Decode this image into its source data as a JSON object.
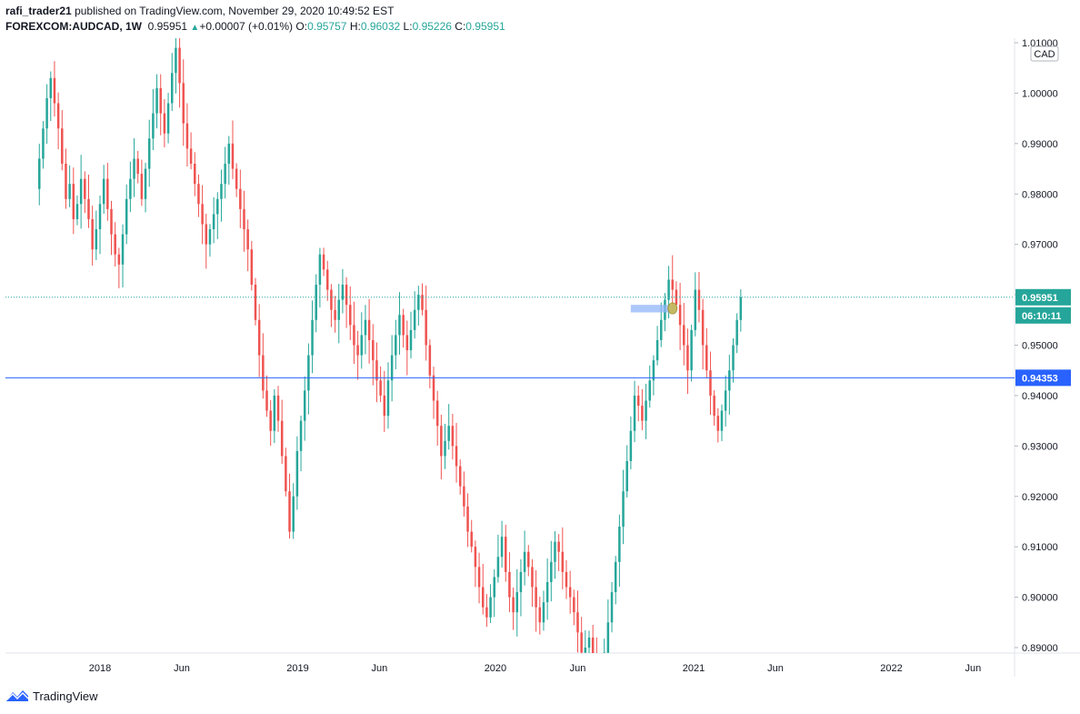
{
  "header": {
    "user": "rafi_trader21",
    "published": "published on TradingView.com, November 29, 2020 10:49:52 EST",
    "symbol": "FOREXCOM:AUDCAD, 1W",
    "price": "0.95951",
    "change": "+0.00007 (+0.01%)",
    "o_label": "O:",
    "o_value": "0.95757",
    "h_label": "H:",
    "h_value": "0.96032",
    "l_label": "L:",
    "l_value": "0.95226",
    "c_label": "C:",
    "c_value": "0.95951"
  },
  "footer": {
    "brand": "TradingView"
  },
  "colors": {
    "up": "#26a69a",
    "down": "#ef5350",
    "hline": "#2962ff",
    "axis_text": "#131722",
    "axis_line": "#e0e3eb",
    "highlight": "#90b4f8",
    "marker": "#c9b84c"
  },
  "chart_data": {
    "type": "candlestick",
    "currency_label": "CAD",
    "y_ticks": [
      "1.01000",
      "1.00000",
      "0.99000",
      "0.98000",
      "0.97000",
      "0.96000",
      "0.95000",
      "0.94000",
      "0.93000",
      "0.92000",
      "0.91000",
      "0.90000",
      "0.89000"
    ],
    "x_ticks": [
      {
        "label": "2018",
        "date": "2018-01-01"
      },
      {
        "label": "Jun",
        "date": "2018-06-01"
      },
      {
        "label": "2019",
        "date": "2019-01-01"
      },
      {
        "label": "Jun",
        "date": "2019-06-01"
      },
      {
        "label": "2020",
        "date": "2020-01-01"
      },
      {
        "label": "Jun",
        "date": "2020-06-01"
      },
      {
        "label": "2021",
        "date": "2021-01-01"
      },
      {
        "label": "Jun",
        "date": "2021-06-01"
      },
      {
        "label": "2022",
        "date": "2022-01-01"
      },
      {
        "label": "Jun",
        "date": "2022-06-01"
      }
    ],
    "current_price": {
      "value": "0.95951",
      "countdown": "06:10:11"
    },
    "horizontal_line": {
      "value": "0.94353"
    },
    "highlight_zone": {
      "from": "2020-09-07",
      "to": "2020-11-30",
      "low": 0.9565,
      "high": 0.958
    },
    "marker_point": {
      "date": "2020-11-23",
      "value": 0.9573
    },
    "path": {
      "start": "2017-09-04",
      "interval_weeks": 1,
      "values": [
        0.981,
        0.987,
        0.993,
        0.999,
        1.003,
        0.998,
        0.993,
        0.986,
        0.979,
        0.982,
        0.975,
        0.978,
        0.983,
        0.979,
        0.975,
        0.969,
        0.973,
        0.978,
        0.983,
        0.977,
        0.972,
        0.968,
        0.966,
        0.972,
        0.979,
        0.983,
        0.987,
        0.984,
        0.979,
        0.985,
        0.991,
        0.996,
        1.001,
        0.996,
        0.992,
        0.998,
        1.004,
        1.009,
        1.002,
        0.994,
        0.989,
        0.986,
        0.982,
        0.978,
        0.974,
        0.97,
        0.973,
        0.976,
        0.979,
        0.982,
        0.986,
        0.99,
        0.985,
        0.981,
        0.977,
        0.973,
        0.969,
        0.962,
        0.955,
        0.948,
        0.941,
        0.937,
        0.933,
        0.94,
        0.935,
        0.928,
        0.921,
        0.913,
        0.92,
        0.929,
        0.935,
        0.941,
        0.948,
        0.955,
        0.962,
        0.968,
        0.965,
        0.961,
        0.957,
        0.955,
        0.959,
        0.962,
        0.958,
        0.954,
        0.95,
        0.948,
        0.952,
        0.955,
        0.951,
        0.947,
        0.943,
        0.94,
        0.936,
        0.943,
        0.948,
        0.952,
        0.956,
        0.952,
        0.949,
        0.953,
        0.957,
        0.96,
        0.957,
        0.95,
        0.944,
        0.939,
        0.934,
        0.928,
        0.931,
        0.934,
        0.93,
        0.926,
        0.922,
        0.918,
        0.913,
        0.91,
        0.906,
        0.902,
        0.898,
        0.896,
        0.9,
        0.904,
        0.908,
        0.912,
        0.905,
        0.9,
        0.897,
        0.901,
        0.905,
        0.909,
        0.906,
        0.902,
        0.898,
        0.895,
        0.899,
        0.903,
        0.907,
        0.911,
        0.909,
        0.905,
        0.902,
        0.9,
        0.897,
        0.893,
        0.889,
        0.89,
        0.892,
        0.888,
        0.885,
        0.883,
        0.889,
        0.895,
        0.901,
        0.907,
        0.914,
        0.921,
        0.927,
        0.933,
        0.94,
        0.938,
        0.935,
        0.939,
        0.943,
        0.947,
        0.951,
        0.955,
        0.959,
        0.963,
        0.961,
        0.958,
        0.954,
        0.95,
        0.945,
        0.953,
        0.961,
        0.957,
        0.95,
        0.945,
        0.94,
        0.936,
        0.933,
        0.937,
        0.941,
        0.945,
        0.95,
        0.955,
        0.9595
      ]
    }
  }
}
